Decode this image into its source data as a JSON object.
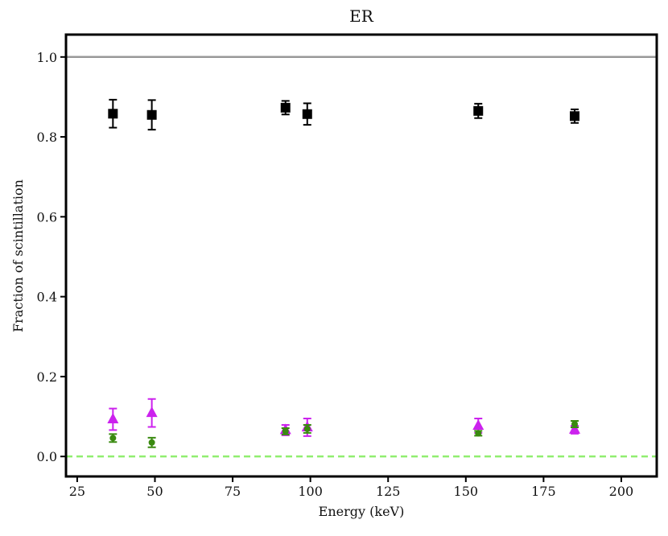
{
  "chart_data": {
    "type": "scatter",
    "title": "ER",
    "xlabel": "Energy (keV)",
    "ylabel": "Fraction of scintillation",
    "xlim": [
      21.4,
      211.4
    ],
    "ylim": [
      -0.05,
      1.056
    ],
    "xticks": [
      25,
      50,
      75,
      100,
      125,
      150,
      175,
      200
    ],
    "yticks": [
      {
        "value": 0,
        "label": "0.0"
      },
      {
        "value": 0.2,
        "label": "0.2"
      },
      {
        "value": 0.4,
        "label": "0.4"
      },
      {
        "value": 0.6,
        "label": "0.6"
      },
      {
        "value": 0.8,
        "label": "0.8"
      },
      {
        "value": 1,
        "label": "1.0"
      }
    ],
    "hlines": [
      {
        "value": 1,
        "color": "#999999",
        "style": "solid"
      },
      {
        "value": 0,
        "color": "#90ee70",
        "style": "dashed"
      }
    ],
    "series": [
      {
        "color": "#000000",
        "marker": "square",
        "x": [
          36.5,
          49,
          92,
          99,
          154,
          185
        ],
        "values": [
          0.858,
          0.855,
          0.873,
          0.857,
          0.865,
          0.852
        ],
        "errors": [
          0.035,
          0.037,
          0.017,
          0.027,
          0.018,
          0.017
        ]
      },
      {
        "color": "#cc22ee",
        "marker": "triangle",
        "x": [
          36.5,
          49,
          92,
          99,
          154,
          185
        ],
        "values": [
          0.093,
          0.109,
          0.066,
          0.073,
          0.077,
          0.067
        ],
        "errors": [
          0.027,
          0.035,
          0.013,
          0.022,
          0.018,
          0.01
        ]
      },
      {
        "color": "#3a8a10",
        "marker": "circle",
        "x": [
          36.5,
          49,
          92,
          99,
          154,
          185
        ],
        "values": [
          0.046,
          0.035,
          0.063,
          0.069,
          0.058,
          0.081
        ],
        "errors": [
          0.01,
          0.012,
          0.008,
          0.01,
          0.006,
          0.008
        ]
      }
    ]
  }
}
